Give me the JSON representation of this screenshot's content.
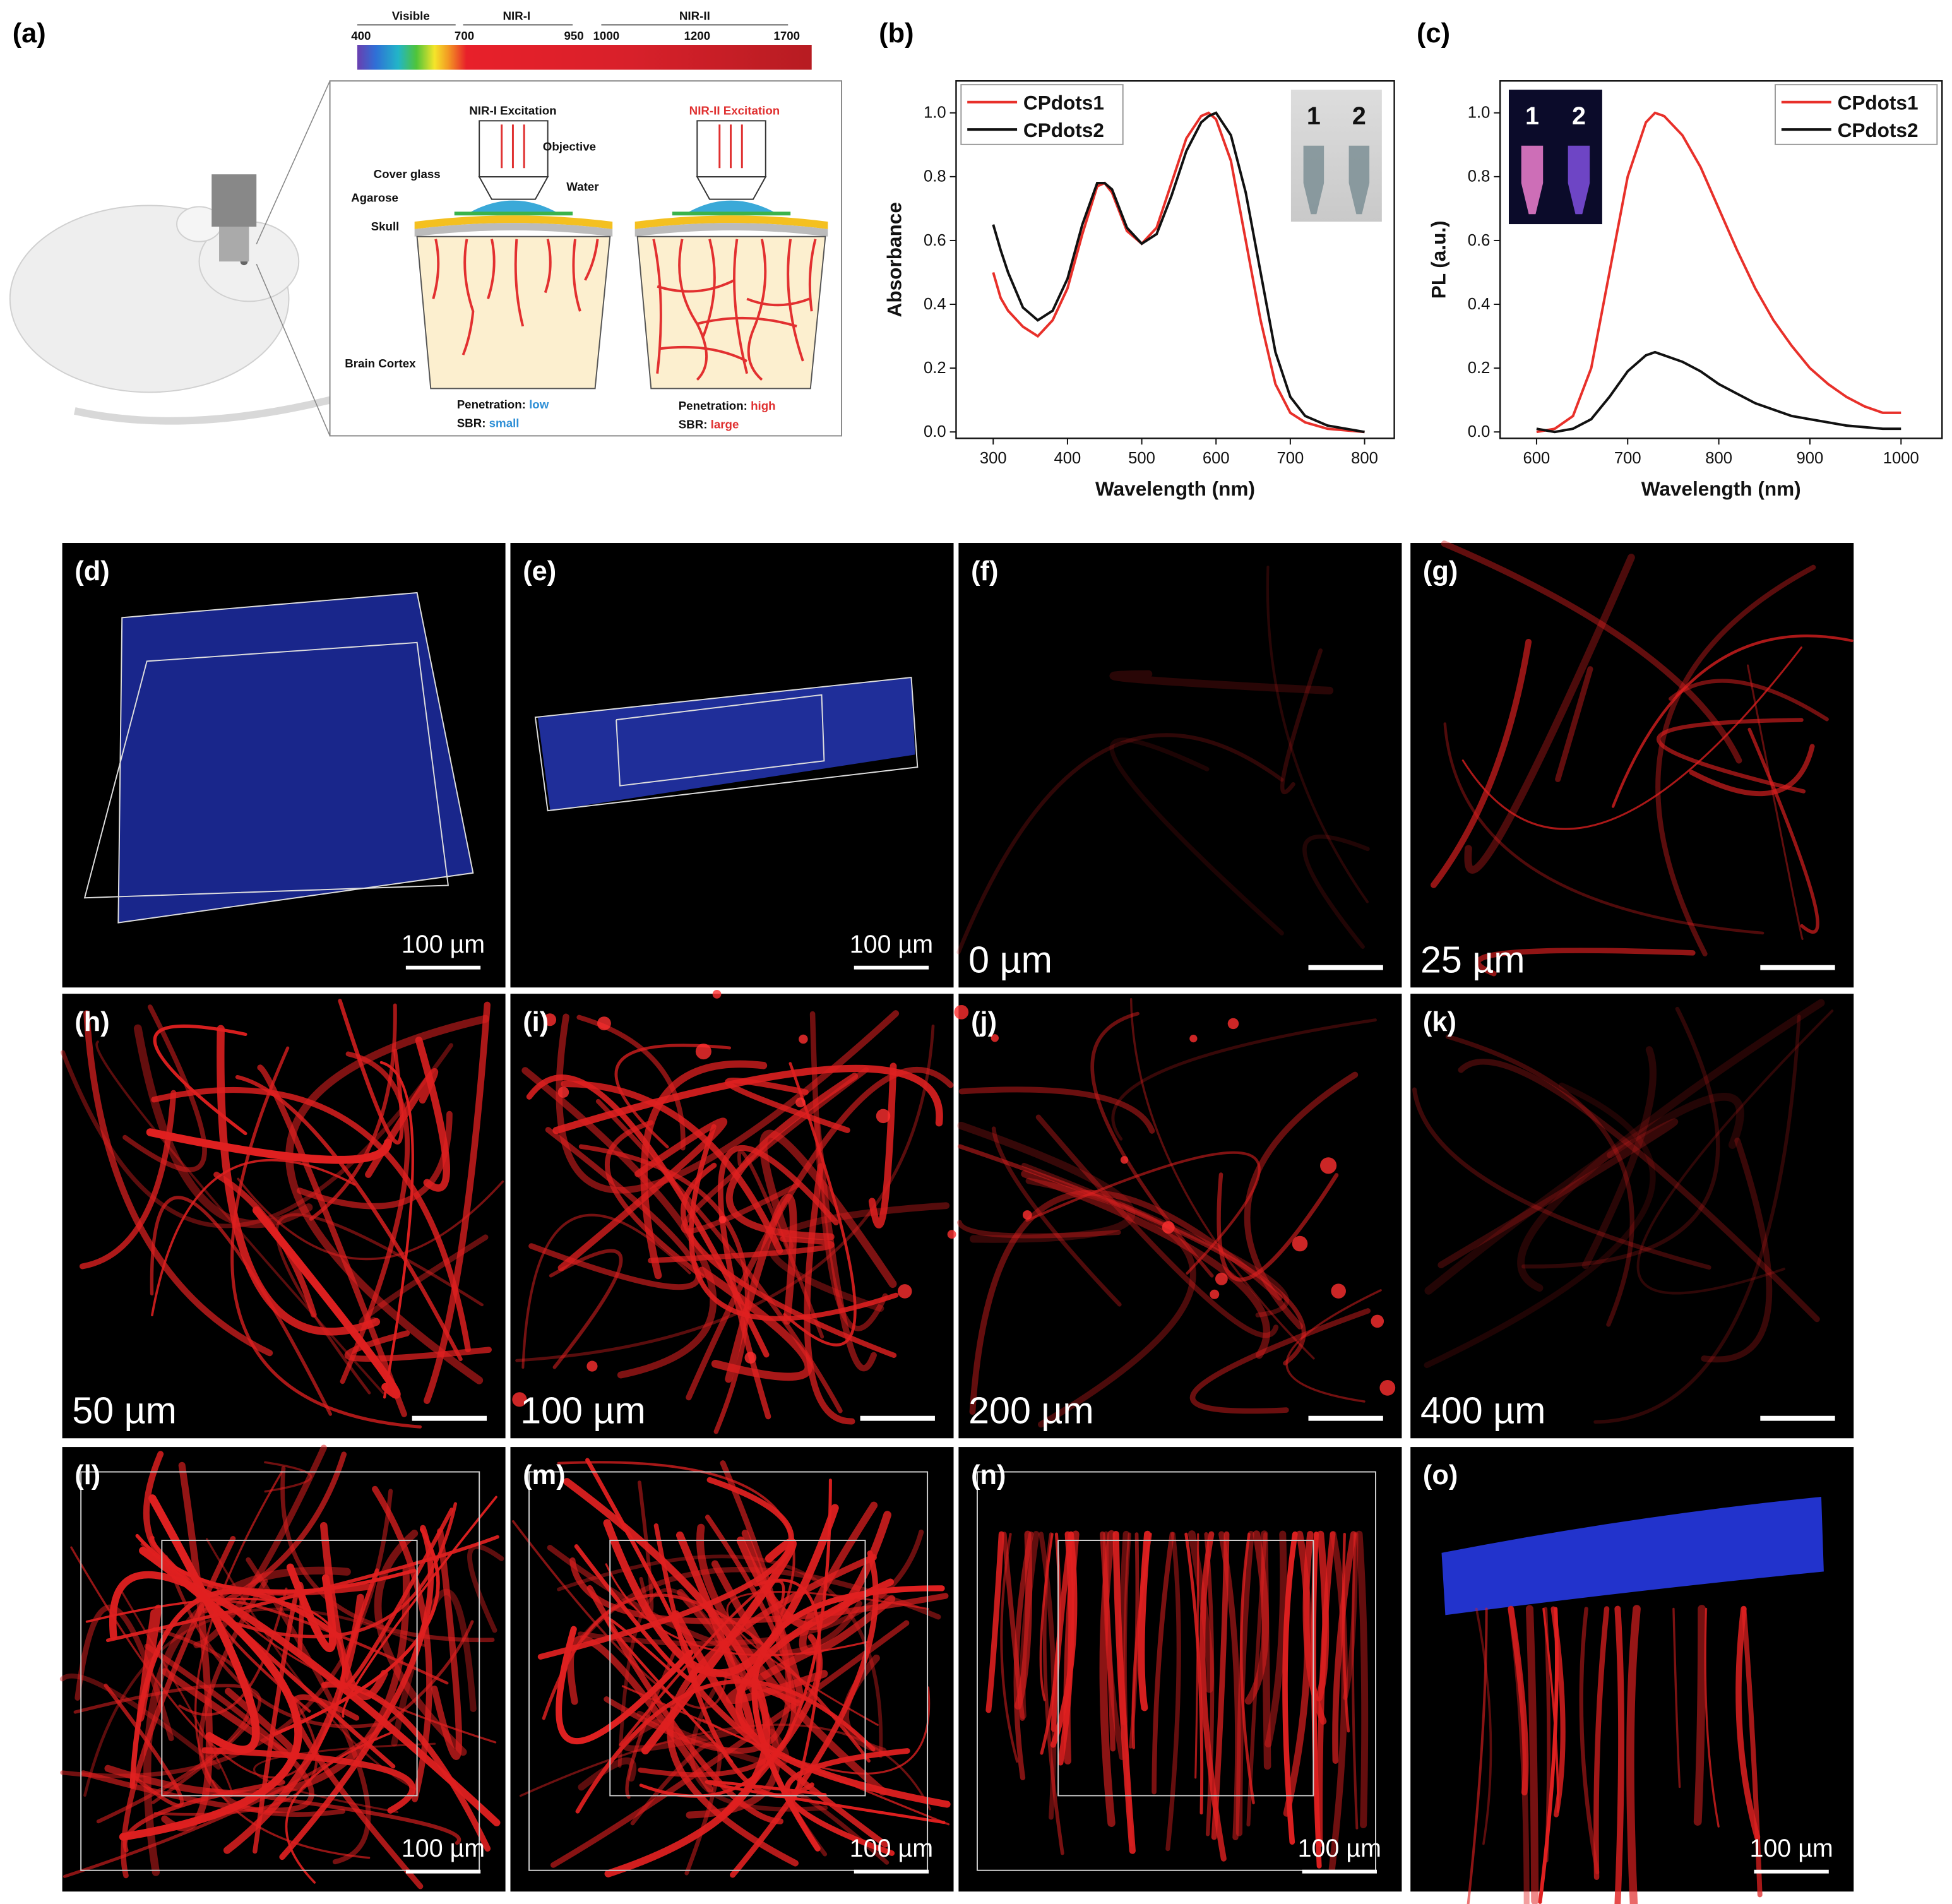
{
  "panels": {
    "a": "(a)",
    "b": "(b)",
    "c": "(c)"
  },
  "spectrum": {
    "regions": [
      "Visible",
      "NIR-I",
      "NIR-II"
    ],
    "ticks": [
      "400",
      "700",
      "950",
      "1000",
      "1200",
      "1700"
    ]
  },
  "diagram": {
    "nir1": {
      "title": "NIR-I Excitation",
      "labels": {
        "objective": "Objective",
        "cover_glass": "Cover glass",
        "water": "Water",
        "agarose": "Agarose",
        "skull": "Skull",
        "brain": "Brain Cortex"
      },
      "penetration": {
        "label": "Penetration:",
        "value": "low"
      },
      "sbr": {
        "label": "SBR:",
        "value": "small"
      }
    },
    "nir2": {
      "title": "NIR-II Excitation",
      "penetration": {
        "label": "Penetration:",
        "value": "high"
      },
      "sbr": {
        "label": "SBR:",
        "value": "large"
      }
    }
  },
  "chart_data": [
    {
      "type": "line",
      "x_label": "Wavelength (nm)",
      "y_label": "Absorbance",
      "x": [
        300,
        310,
        320,
        340,
        360,
        380,
        400,
        420,
        440,
        450,
        460,
        480,
        500,
        520,
        540,
        560,
        580,
        590,
        600,
        620,
        640,
        660,
        680,
        700,
        720,
        750,
        800
      ],
      "series": [
        {
          "name": "CPdots1",
          "color": "#e8302a",
          "values": [
            0.5,
            0.42,
            0.38,
            0.33,
            0.3,
            0.35,
            0.45,
            0.62,
            0.77,
            0.78,
            0.75,
            0.63,
            0.59,
            0.64,
            0.78,
            0.92,
            0.99,
            1.0,
            0.98,
            0.85,
            0.6,
            0.35,
            0.15,
            0.06,
            0.03,
            0.01,
            0.0
          ]
        },
        {
          "name": "CPdots2",
          "color": "#111111",
          "values": [
            0.65,
            0.57,
            0.5,
            0.39,
            0.35,
            0.38,
            0.48,
            0.65,
            0.78,
            0.78,
            0.76,
            0.64,
            0.59,
            0.62,
            0.74,
            0.88,
            0.97,
            0.99,
            1.0,
            0.93,
            0.75,
            0.5,
            0.25,
            0.11,
            0.05,
            0.02,
            0.0
          ]
        }
      ],
      "xlim": [
        250,
        840
      ],
      "ylim": [
        -0.02,
        1.1
      ],
      "xticks": [
        300,
        400,
        500,
        600,
        700,
        800
      ],
      "yticks": [
        {
          "value": 0,
          "label": "0.0"
        },
        {
          "value": 0.2,
          "label": "0.2"
        },
        {
          "value": 0.4,
          "label": "0.4"
        },
        {
          "value": 0.6,
          "label": "0.6"
        },
        {
          "value": 0.8,
          "label": "0.8"
        },
        {
          "value": 1.0,
          "label": "1.0"
        }
      ],
      "legend": "upper left",
      "inset_labels": [
        "1",
        "2"
      ]
    },
    {
      "type": "line",
      "x_label": "Wavelength (nm)",
      "y_label": "PL (a.u.)",
      "x": [
        600,
        620,
        640,
        660,
        680,
        700,
        720,
        730,
        740,
        760,
        780,
        800,
        820,
        840,
        860,
        880,
        900,
        920,
        940,
        960,
        980,
        1000
      ],
      "series": [
        {
          "name": "CPdots1",
          "color": "#e8302a",
          "values": [
            0.0,
            0.01,
            0.05,
            0.2,
            0.5,
            0.8,
            0.97,
            1.0,
            0.99,
            0.93,
            0.83,
            0.7,
            0.57,
            0.45,
            0.35,
            0.27,
            0.2,
            0.15,
            0.11,
            0.08,
            0.06,
            0.06
          ]
        },
        {
          "name": "CPdots2",
          "color": "#111111",
          "values": [
            0.01,
            0.0,
            0.01,
            0.04,
            0.11,
            0.19,
            0.24,
            0.25,
            0.24,
            0.22,
            0.19,
            0.15,
            0.12,
            0.09,
            0.07,
            0.05,
            0.04,
            0.03,
            0.02,
            0.015,
            0.01,
            0.01
          ]
        }
      ],
      "xlim": [
        560,
        1045
      ],
      "ylim": [
        -0.02,
        1.1
      ],
      "xticks": [
        600,
        700,
        800,
        900,
        1000
      ],
      "yticks": [
        {
          "value": 0,
          "label": "0.0"
        },
        {
          "value": 0.2,
          "label": "0.2"
        },
        {
          "value": 0.4,
          "label": "0.4"
        },
        {
          "value": 0.6,
          "label": "0.6"
        },
        {
          "value": 0.8,
          "label": "0.8"
        },
        {
          "value": 1.0,
          "label": "1.0"
        }
      ],
      "legend": "upper right",
      "inset_labels": [
        "1",
        "2"
      ]
    }
  ],
  "images": [
    {
      "label": "(d)",
      "scale": "100 µm"
    },
    {
      "label": "(e)",
      "scale": "100 µm"
    },
    {
      "label": "(f)",
      "depth": "0 µm"
    },
    {
      "label": "(g)",
      "depth": "25 µm"
    },
    {
      "label": "(h)",
      "depth": "50 µm"
    },
    {
      "label": "(i)",
      "depth": "100 µm"
    },
    {
      "label": "(j)",
      "depth": "200 µm"
    },
    {
      "label": "(k)",
      "depth": "400 µm"
    },
    {
      "label": "(l)",
      "scale": "100 µm"
    },
    {
      "label": "(m)",
      "scale": "100 µm"
    },
    {
      "label": "(n)",
      "scale": "100 µm"
    },
    {
      "label": "(o)",
      "scale": "100 µm"
    }
  ]
}
